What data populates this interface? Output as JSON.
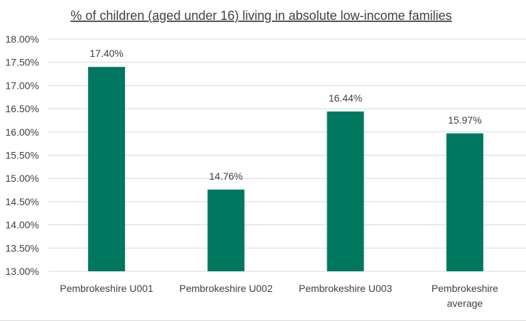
{
  "chart_data": {
    "type": "bar",
    "title": "% of children (aged under 16) living in absolute low-income families",
    "xlabel": "",
    "ylabel": "",
    "categories": [
      [
        "Pembrokeshire U001"
      ],
      [
        "Pembrokeshire U002"
      ],
      [
        "Pembrokeshire U003"
      ],
      [
        "Pembrokeshire",
        "average"
      ]
    ],
    "values": [
      17.4,
      14.76,
      16.44,
      15.97
    ],
    "data_labels": [
      "17.40%",
      "14.76%",
      "16.44%",
      "15.97%"
    ],
    "ylim": [
      13.0,
      18.0
    ],
    "y_ticks": [
      13.0,
      13.5,
      14.0,
      14.5,
      15.0,
      15.5,
      16.0,
      16.5,
      17.0,
      17.5,
      18.0
    ],
    "y_tick_labels": [
      "13.00%",
      "13.50%",
      "14.00%",
      "14.50%",
      "15.00%",
      "15.50%",
      "16.00%",
      "16.50%",
      "17.00%",
      "17.50%",
      "18.00%"
    ],
    "grid": true,
    "legend": "none",
    "colors": {
      "bar": "#00785F",
      "grid": "#d9d9d9",
      "text": "#404040"
    }
  }
}
